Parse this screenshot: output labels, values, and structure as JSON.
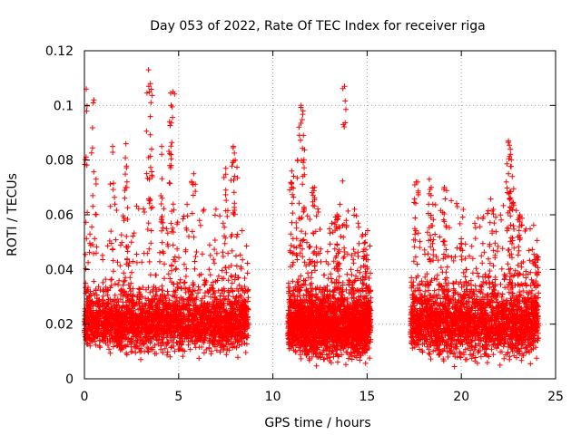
{
  "chart_data": {
    "type": "scatter",
    "title": "Day 053 of 2022, Rate Of TEC Index for receiver riga",
    "xlabel": "GPS time / hours",
    "ylabel": "ROTI / TECUs",
    "xlim": [
      0,
      25
    ],
    "ylim": [
      0,
      0.12
    ],
    "xticks": [
      0,
      5,
      10,
      15,
      20,
      25
    ],
    "yticks": [
      0,
      0.02,
      0.04,
      0.06,
      0.08,
      0.1,
      0.12
    ],
    "ytick_labels": [
      "0",
      "0.02",
      "0.04",
      "0.06",
      "0.08",
      "0.1",
      "0.12"
    ],
    "grid": true,
    "marker": "+",
    "color": "#ff0000",
    "data_segments": [
      {
        "x_range": [
          0.0,
          8.7
        ],
        "baseline": [
          0.01,
          0.032
        ],
        "sample_peaks": [
          [
            0.1,
            0.106
          ],
          [
            0.5,
            0.102
          ],
          [
            1.5,
            0.085
          ],
          [
            2.2,
            0.086
          ],
          [
            3.4,
            0.113
          ],
          [
            3.5,
            0.108
          ],
          [
            4.1,
            0.085
          ],
          [
            4.6,
            0.1
          ],
          [
            4.7,
            0.105
          ],
          [
            5.8,
            0.075
          ],
          [
            7.5,
            0.077
          ],
          [
            7.9,
            0.085
          ],
          [
            8.0,
            0.08
          ]
        ]
      },
      {
        "x_range": [
          10.8,
          15.2
        ],
        "baseline": [
          0.008,
          0.032
        ],
        "sample_peaks": [
          [
            11.0,
            0.076
          ],
          [
            11.3,
            0.08
          ],
          [
            11.5,
            0.1
          ],
          [
            11.6,
            0.098
          ],
          [
            12.2,
            0.07
          ],
          [
            13.4,
            0.06
          ],
          [
            13.8,
            0.107
          ],
          [
            14.9,
            0.05
          ]
        ]
      },
      {
        "x_range": [
          17.3,
          24.1
        ],
        "baseline": [
          0.008,
          0.034
        ],
        "sample_peaks": [
          [
            17.6,
            0.072
          ],
          [
            18.3,
            0.073
          ],
          [
            18.4,
            0.07
          ],
          [
            19.1,
            0.07
          ],
          [
            20.1,
            0.062
          ],
          [
            21.7,
            0.062
          ],
          [
            22.5,
            0.087
          ],
          [
            22.6,
            0.084
          ],
          [
            22.7,
            0.074
          ],
          [
            23.1,
            0.06
          ],
          [
            24.0,
            0.045
          ]
        ]
      }
    ]
  }
}
